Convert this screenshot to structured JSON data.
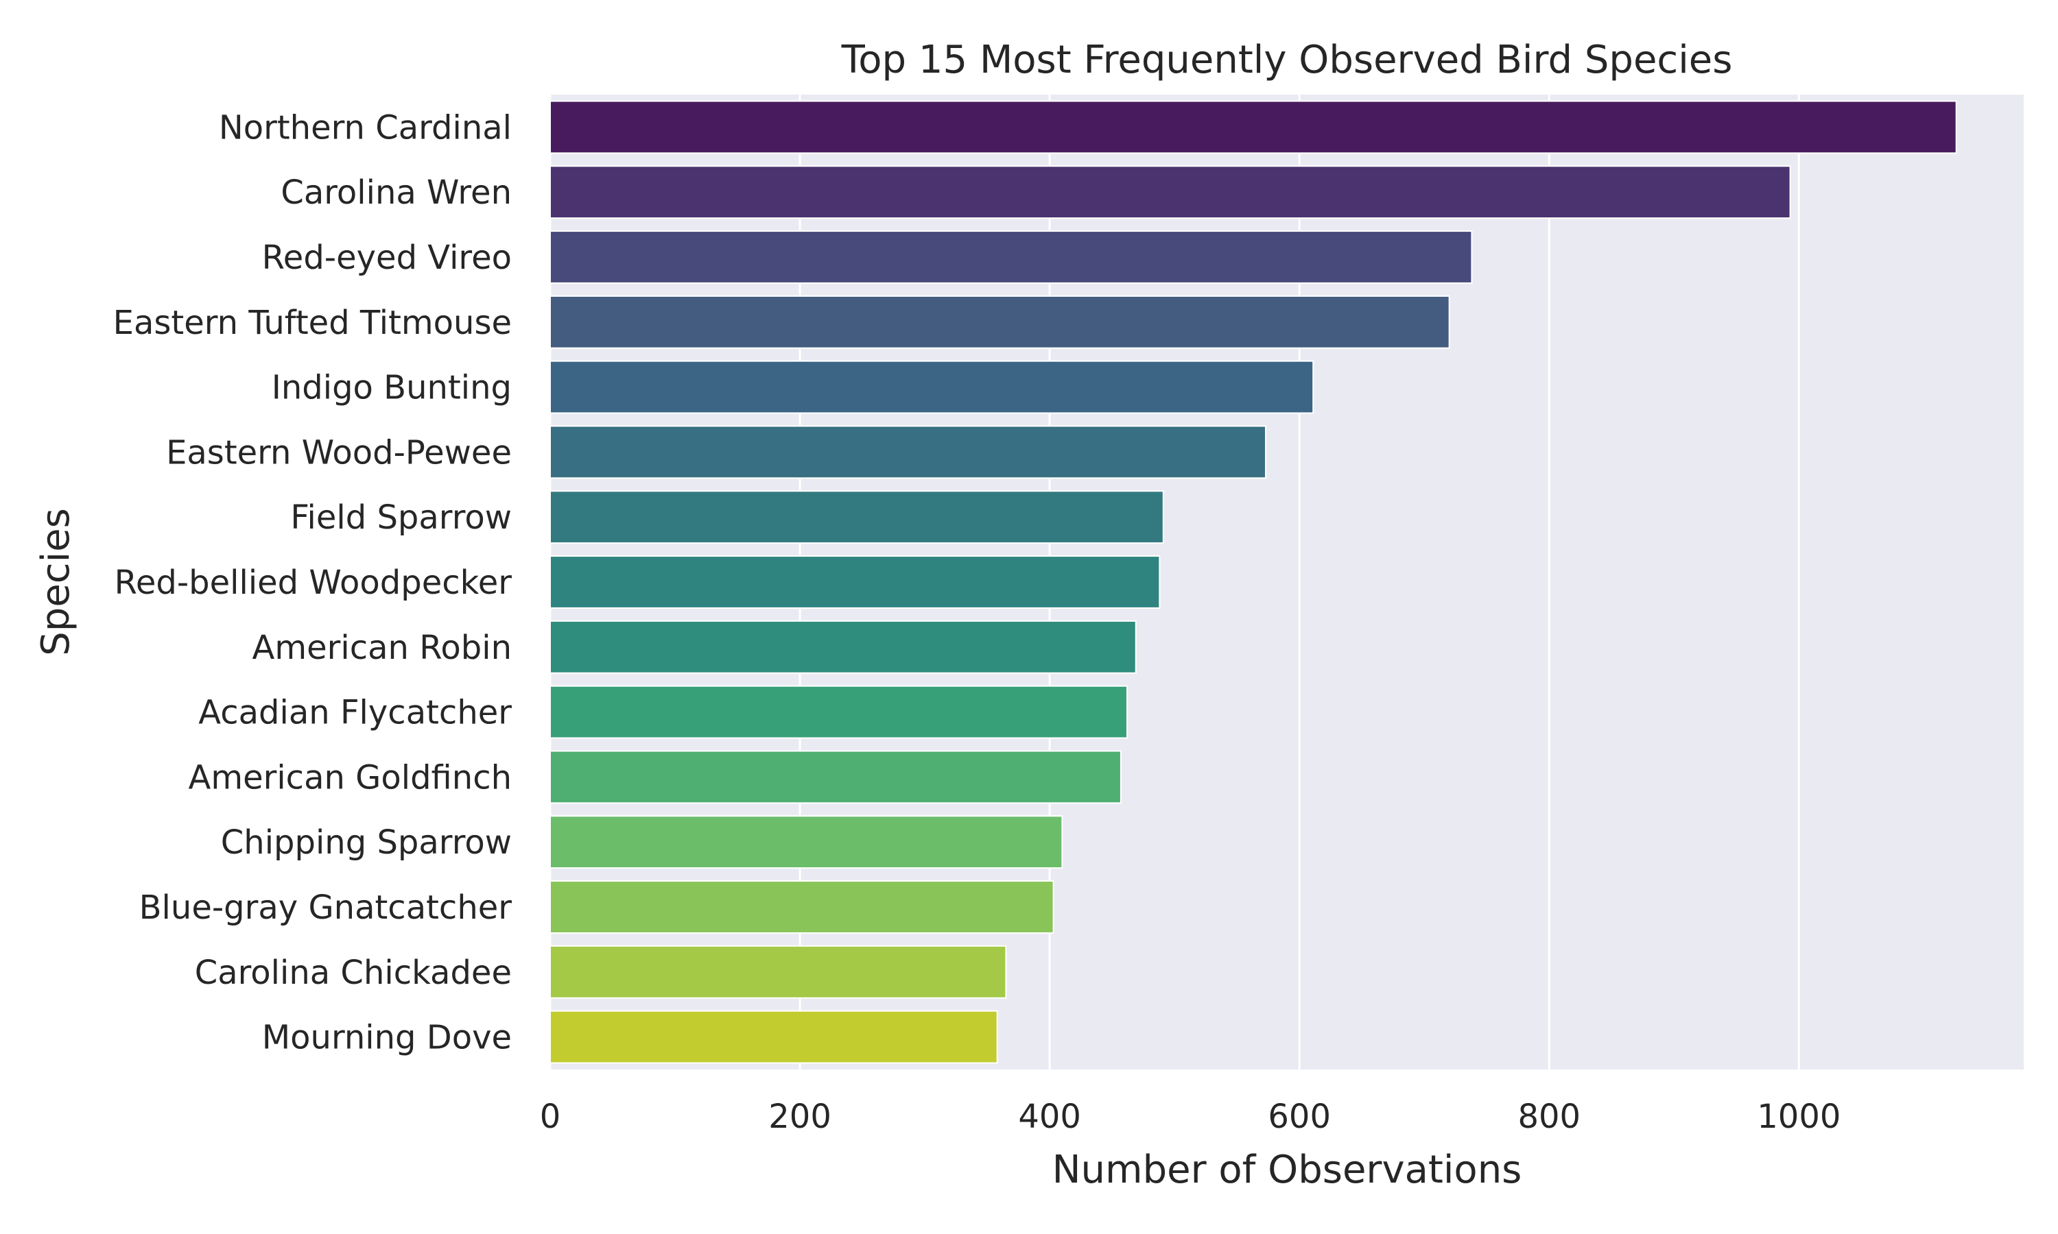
{
  "chart_data": {
    "type": "bar",
    "orientation": "horizontal",
    "title": "Top 15 Most Frequently Observed Bird Species",
    "xlabel": "Number of Observations",
    "ylabel": "Species",
    "categories": [
      "Northern Cardinal",
      "Carolina Wren",
      "Red-eyed Vireo",
      "Eastern Tufted Titmouse",
      "Indigo Bunting",
      "Eastern Wood-Pewee",
      "Field Sparrow",
      "Red-bellied Woodpecker",
      "American Robin",
      "Acadian Flycatcher",
      "American Goldfinch",
      "Chipping Sparrow",
      "Blue-gray Gnatcatcher",
      "Carolina Chickadee",
      "Mourning Dove"
    ],
    "values": [
      1126,
      993,
      738,
      720,
      611,
      573,
      491,
      488,
      469,
      462,
      457,
      410,
      403,
      365,
      358
    ],
    "xlim": [
      0,
      1180
    ],
    "xticks": [
      0,
      200,
      400,
      600,
      800,
      1000
    ],
    "grid": true,
    "colors": [
      "#481b5f",
      "#4a336f",
      "#484a7c",
      "#435c80",
      "#3c6585",
      "#386f82",
      "#337a80",
      "#2f8480",
      "#2e8d7c",
      "#38a078",
      "#4fae72",
      "#6bbd6a",
      "#88c458",
      "#a3c947",
      "#c2cc2e"
    ],
    "plot_background": "#eaeaf2",
    "grid_color": "#ffffff"
  }
}
